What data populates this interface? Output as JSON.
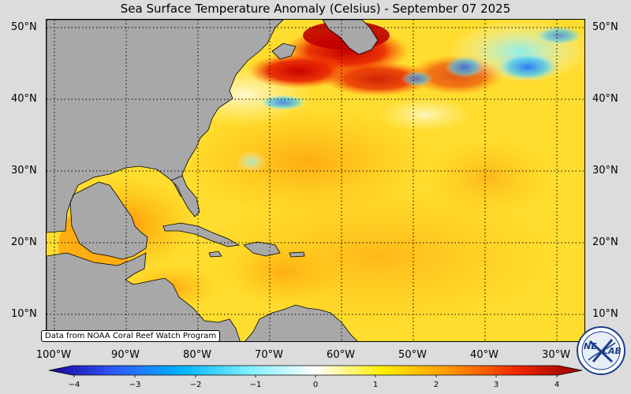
{
  "title": "Sea Surface Temperature Anomaly (Celsius) - September 07 2025",
  "map": {
    "lat_labels": [
      "50°N",
      "40°N",
      "30°N",
      "20°N",
      "10°N"
    ],
    "lat_values": [
      50,
      40,
      30,
      20,
      10
    ],
    "lon_labels": [
      "100°W",
      "90°W",
      "80°W",
      "70°W",
      "60°W",
      "50°W",
      "40°W",
      "30°W"
    ],
    "lon_values": [
      -100,
      -90,
      -80,
      -70,
      -60,
      -50,
      -40,
      -30
    ],
    "lon_range": [
      -101,
      -26
    ],
    "lat_range": [
      6,
      51
    ],
    "grid": "dotted",
    "land_color": "#a8a8a8"
  },
  "colorbar": {
    "ticks": [
      "−4",
      "−3",
      "−2",
      "−1",
      "0",
      "1",
      "2",
      "3",
      "4"
    ],
    "tick_values": [
      -4,
      -3,
      -2,
      -1,
      0,
      1,
      2,
      3,
      4
    ],
    "range": [
      -4,
      4
    ],
    "colors": [
      "#1a0096",
      "#2e5bff",
      "#00b4ff",
      "#7ff0ff",
      "#ffffff",
      "#ffee00",
      "#ff9a00",
      "#f02800",
      "#960000"
    ]
  },
  "credit": "Data from NOAA Coral Reef Watch Program",
  "logo": {
    "text_left": "NE",
    "text_right": "LAB"
  }
}
